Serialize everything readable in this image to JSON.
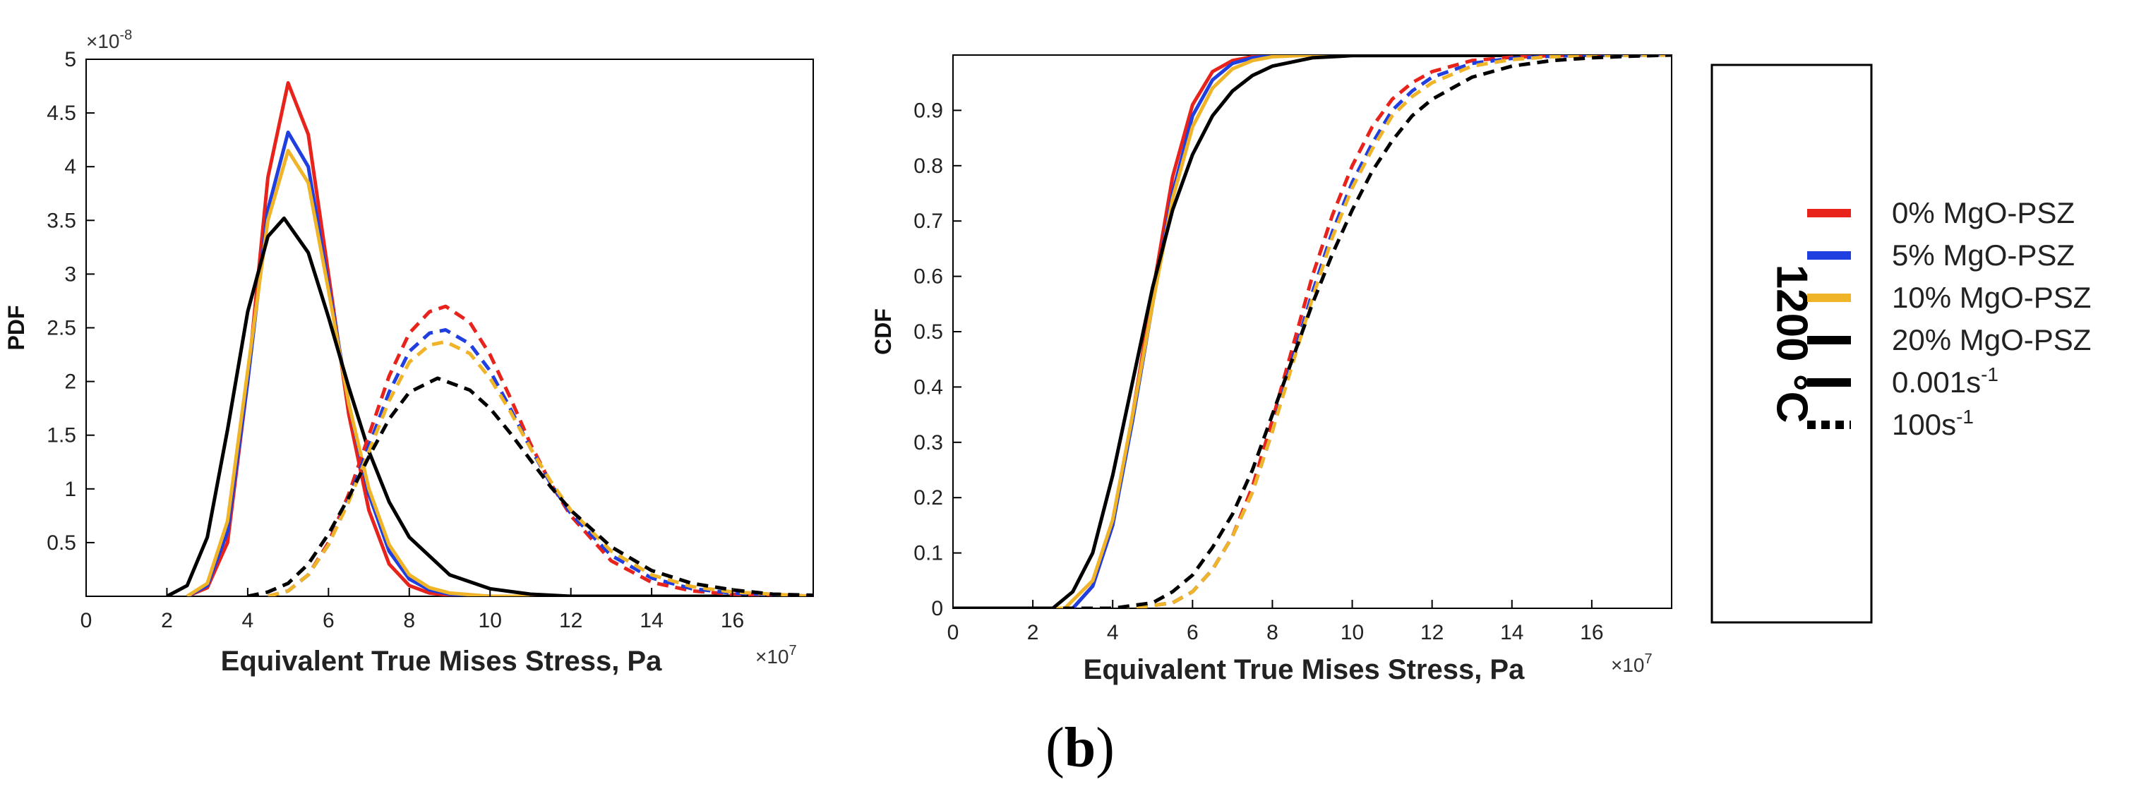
{
  "caption": {
    "open": "(",
    "letter": "b",
    "close": ")"
  },
  "legend": {
    "temperature": "1200 °C",
    "materials": [
      {
        "label": "0% MgO-PSZ",
        "color": "#e8231c"
      },
      {
        "label": "5% MgO-PSZ",
        "color": "#1f3fe0"
      },
      {
        "label": "10% MgO-PSZ",
        "color": "#f0b429"
      },
      {
        "label": "20% MgO-PSZ",
        "color": "#000000"
      }
    ],
    "rates": [
      {
        "base": "0.001s",
        "sup": "-1",
        "style": "solid"
      },
      {
        "base": "100s",
        "sup": "-1",
        "style": "dashed"
      }
    ]
  },
  "chart_data": [
    {
      "type": "line",
      "ylabel": "PDF",
      "xlabel": "Equivalent True Mises Stress, Pa",
      "x_multiplier": "×10",
      "x_multiplier_exp": "7",
      "y_multiplier": "×10",
      "y_multiplier_exp": "-8",
      "xlim": [
        0,
        18
      ],
      "ylim": [
        0,
        5
      ],
      "xticks": [
        0,
        2,
        4,
        6,
        8,
        10,
        12,
        14,
        16
      ],
      "yticks": [
        0.5,
        1,
        1.5,
        2,
        2.5,
        3,
        3.5,
        4,
        4.5,
        5
      ],
      "ytick_labels": [
        "0.5",
        "1",
        "1.5",
        "2",
        "2.5",
        "3",
        "3.5",
        "4",
        "4.5",
        "5"
      ],
      "series": [
        {
          "name": "0% MgO-PSZ, 0.001s-1",
          "rate": "0.001s-1",
          "color": "#e8231c",
          "dash": "solid",
          "x": [
            2.5,
            3.0,
            3.5,
            4.0,
            4.5,
            5.0,
            5.5,
            6.0,
            6.5,
            7.0,
            7.5,
            8.0,
            8.5,
            9.0,
            10.0,
            18.0
          ],
          "y": [
            0.0,
            0.08,
            0.5,
            2.0,
            3.9,
            4.78,
            4.3,
            3.0,
            1.7,
            0.8,
            0.3,
            0.1,
            0.03,
            0.01,
            0.0,
            0.0
          ]
        },
        {
          "name": "5% MgO-PSZ, 0.001s-1",
          "rate": "0.001s-1",
          "color": "#1f3fe0",
          "dash": "solid",
          "x": [
            2.5,
            3.0,
            3.5,
            4.0,
            4.5,
            5.0,
            5.5,
            6.0,
            6.5,
            7.0,
            7.5,
            8.0,
            8.5,
            9.0,
            10.0,
            18.0
          ],
          "y": [
            0.0,
            0.1,
            0.6,
            2.0,
            3.6,
            4.32,
            4.0,
            2.9,
            1.8,
            0.95,
            0.42,
            0.16,
            0.06,
            0.02,
            0.0,
            0.0
          ]
        },
        {
          "name": "10% MgO-PSZ, 0.001s-1",
          "rate": "0.001s-1",
          "color": "#f0b429",
          "dash": "solid",
          "x": [
            2.5,
            3.0,
            3.5,
            4.0,
            4.5,
            5.0,
            5.5,
            6.0,
            6.5,
            7.0,
            7.5,
            8.0,
            8.5,
            9.0,
            10.0,
            18.0
          ],
          "y": [
            0.0,
            0.12,
            0.7,
            2.1,
            3.5,
            4.15,
            3.85,
            2.85,
            1.8,
            1.0,
            0.48,
            0.2,
            0.08,
            0.03,
            0.0,
            0.0
          ]
        },
        {
          "name": "20% MgO-PSZ, 0.001s-1",
          "rate": "0.001s-1",
          "color": "#000000",
          "dash": "solid",
          "x": [
            2.0,
            2.5,
            3.0,
            3.5,
            4.0,
            4.5,
            4.9,
            5.5,
            6.0,
            6.5,
            7.0,
            7.5,
            8.0,
            9.0,
            10.0,
            11.0,
            12.0,
            18.0
          ],
          "y": [
            0.0,
            0.1,
            0.55,
            1.55,
            2.65,
            3.35,
            3.52,
            3.2,
            2.6,
            1.95,
            1.35,
            0.88,
            0.55,
            0.2,
            0.07,
            0.02,
            0.0,
            0.0
          ]
        },
        {
          "name": "0% MgO-PSZ, 100s-1",
          "rate": "100s-1",
          "color": "#e8231c",
          "dash": "dashed",
          "x": [
            4.5,
            5.0,
            5.5,
            6.0,
            6.5,
            7.0,
            7.5,
            8.0,
            8.5,
            8.9,
            9.5,
            10.0,
            10.5,
            11.0,
            11.5,
            12.0,
            13.0,
            14.0,
            15.0,
            16.0,
            18.0
          ],
          "y": [
            0.0,
            0.05,
            0.2,
            0.5,
            0.95,
            1.5,
            2.05,
            2.45,
            2.65,
            2.7,
            2.55,
            2.25,
            1.85,
            1.42,
            1.05,
            0.75,
            0.33,
            0.13,
            0.05,
            0.02,
            0.0
          ]
        },
        {
          "name": "5% MgO-PSZ, 100s-1",
          "rate": "100s-1",
          "color": "#1f3fe0",
          "dash": "dashed",
          "x": [
            4.5,
            5.0,
            5.5,
            6.0,
            6.5,
            7.0,
            7.5,
            8.0,
            8.5,
            8.9,
            9.5,
            10.0,
            10.5,
            11.0,
            11.5,
            12.0,
            13.0,
            14.0,
            15.0,
            16.0,
            18.0
          ],
          "y": [
            0.0,
            0.05,
            0.2,
            0.48,
            0.9,
            1.4,
            1.9,
            2.28,
            2.45,
            2.48,
            2.35,
            2.1,
            1.75,
            1.38,
            1.05,
            0.77,
            0.38,
            0.17,
            0.07,
            0.03,
            0.0
          ]
        },
        {
          "name": "10% MgO-PSZ, 100s-1",
          "rate": "100s-1",
          "color": "#f0b429",
          "dash": "dashed",
          "x": [
            4.5,
            5.0,
            5.5,
            6.0,
            6.5,
            7.0,
            7.5,
            8.0,
            8.5,
            8.9,
            9.5,
            10.0,
            10.5,
            11.0,
            11.5,
            12.0,
            13.0,
            14.0,
            15.0,
            16.0,
            18.0
          ],
          "y": [
            0.0,
            0.05,
            0.2,
            0.48,
            0.88,
            1.35,
            1.82,
            2.18,
            2.34,
            2.37,
            2.26,
            2.03,
            1.72,
            1.38,
            1.07,
            0.8,
            0.42,
            0.2,
            0.09,
            0.04,
            0.0
          ]
        },
        {
          "name": "20% MgO-PSZ, 100s-1",
          "rate": "100s-1",
          "color": "#000000",
          "dash": "dashed",
          "x": [
            4.0,
            4.5,
            5.0,
            5.5,
            6.0,
            6.5,
            7.0,
            7.5,
            8.0,
            8.7,
            9.5,
            10.0,
            10.5,
            11.0,
            11.5,
            12.0,
            13.0,
            14.0,
            15.0,
            16.0,
            17.0,
            18.0
          ],
          "y": [
            0.0,
            0.04,
            0.12,
            0.3,
            0.58,
            0.92,
            1.3,
            1.65,
            1.9,
            2.03,
            1.92,
            1.75,
            1.52,
            1.27,
            1.02,
            0.8,
            0.46,
            0.24,
            0.12,
            0.06,
            0.02,
            0.01
          ]
        }
      ]
    },
    {
      "type": "line",
      "ylabel": "CDF",
      "xlabel": "Equivalent True Mises Stress, Pa",
      "x_multiplier": "×10",
      "x_multiplier_exp": "7",
      "xlim": [
        0,
        18
      ],
      "ylim": [
        0,
        1
      ],
      "xticks": [
        0,
        2,
        4,
        6,
        8,
        10,
        12,
        14,
        16
      ],
      "yticks": [
        0,
        0.1,
        0.2,
        0.3,
        0.4,
        0.5,
        0.6,
        0.7,
        0.8,
        0.9
      ],
      "ytick_labels": [
        "0",
        "0.1",
        "0.2",
        "0.3",
        "0.4",
        "0.5",
        "0.6",
        "0.7",
        "0.8",
        "0.9"
      ],
      "series": [
        {
          "name": "0% MgO-PSZ, 0.001s-1",
          "rate": "0.001s-1",
          "color": "#e8231c",
          "dash": "solid",
          "x": [
            0,
            3.0,
            3.5,
            4.0,
            4.5,
            5.0,
            5.5,
            6.0,
            6.5,
            7.0,
            7.5,
            8.0,
            18.0
          ],
          "y": [
            0,
            0.0,
            0.04,
            0.15,
            0.35,
            0.57,
            0.78,
            0.91,
            0.97,
            0.99,
            0.997,
            1.0,
            1.0
          ]
        },
        {
          "name": "5% MgO-PSZ, 0.001s-1",
          "rate": "0.001s-1",
          "color": "#1f3fe0",
          "dash": "solid",
          "x": [
            0,
            3.0,
            3.5,
            4.0,
            4.5,
            5.0,
            5.5,
            6.0,
            6.5,
            7.0,
            7.5,
            8.0,
            9.0,
            18.0
          ],
          "y": [
            0,
            0.0,
            0.04,
            0.15,
            0.34,
            0.55,
            0.75,
            0.89,
            0.955,
            0.985,
            0.995,
            0.999,
            1.0,
            1.0
          ]
        },
        {
          "name": "10% MgO-PSZ, 0.001s-1",
          "rate": "0.001s-1",
          "color": "#f0b429",
          "dash": "solid",
          "x": [
            0,
            2.8,
            3.5,
            4.0,
            4.5,
            5.0,
            5.5,
            6.0,
            6.5,
            7.0,
            7.5,
            8.0,
            9.0,
            18.0
          ],
          "y": [
            0,
            0.0,
            0.05,
            0.16,
            0.35,
            0.55,
            0.74,
            0.87,
            0.94,
            0.975,
            0.99,
            0.997,
            1.0,
            1.0
          ]
        },
        {
          "name": "20% MgO-PSZ, 0.001s-1",
          "rate": "0.001s-1",
          "color": "#000000",
          "dash": "solid",
          "x": [
            0,
            2.5,
            3.0,
            3.5,
            4.0,
            4.5,
            5.0,
            5.5,
            6.0,
            6.5,
            7.0,
            7.5,
            8.0,
            9.0,
            10.0,
            18.0
          ],
          "y": [
            0,
            0.0,
            0.03,
            0.1,
            0.24,
            0.41,
            0.58,
            0.72,
            0.82,
            0.89,
            0.935,
            0.963,
            0.98,
            0.995,
            0.999,
            1.0
          ]
        },
        {
          "name": "0% MgO-PSZ, 100s-1",
          "rate": "100s-1",
          "color": "#e8231c",
          "dash": "dashed",
          "x": [
            0,
            4.5,
            5.5,
            6.0,
            6.5,
            7.0,
            7.5,
            8.0,
            8.5,
            9.0,
            9.5,
            10.0,
            10.5,
            11.0,
            11.5,
            12.0,
            13.0,
            14.0,
            15.0,
            16.0,
            18.0
          ],
          "y": [
            0,
            0.0,
            0.01,
            0.03,
            0.07,
            0.13,
            0.22,
            0.34,
            0.47,
            0.6,
            0.71,
            0.8,
            0.87,
            0.92,
            0.95,
            0.97,
            0.99,
            0.996,
            0.999,
            1.0,
            1.0
          ]
        },
        {
          "name": "5% MgO-PSZ, 100s-1",
          "rate": "100s-1",
          "color": "#1f3fe0",
          "dash": "dashed",
          "x": [
            0,
            4.5,
            5.5,
            6.0,
            6.5,
            7.0,
            7.5,
            8.0,
            8.5,
            9.0,
            9.5,
            10.0,
            10.5,
            11.0,
            11.5,
            12.0,
            13.0,
            14.0,
            15.0,
            16.0,
            18.0
          ],
          "y": [
            0,
            0.0,
            0.01,
            0.03,
            0.07,
            0.13,
            0.21,
            0.32,
            0.45,
            0.57,
            0.68,
            0.77,
            0.84,
            0.9,
            0.935,
            0.96,
            0.985,
            0.994,
            0.998,
            1.0,
            1.0
          ]
        },
        {
          "name": "10% MgO-PSZ, 100s-1",
          "rate": "100s-1",
          "color": "#f0b429",
          "dash": "dashed",
          "x": [
            0,
            4.5,
            5.5,
            6.0,
            6.5,
            7.0,
            7.5,
            8.0,
            8.5,
            9.0,
            9.5,
            10.0,
            10.5,
            11.0,
            11.5,
            12.0,
            13.0,
            14.0,
            15.0,
            16.0,
            18.0
          ],
          "y": [
            0,
            0.0,
            0.01,
            0.03,
            0.07,
            0.13,
            0.21,
            0.32,
            0.44,
            0.56,
            0.67,
            0.76,
            0.83,
            0.89,
            0.925,
            0.95,
            0.98,
            0.992,
            0.997,
            0.999,
            1.0
          ]
        },
        {
          "name": "20% MgO-PSZ, 100s-1",
          "rate": "100s-1",
          "color": "#000000",
          "dash": "dashed",
          "x": [
            0,
            4.0,
            5.0,
            5.5,
            6.0,
            6.5,
            7.0,
            7.5,
            8.0,
            8.5,
            9.0,
            9.5,
            10.0,
            10.5,
            11.0,
            11.5,
            12.0,
            13.0,
            14.0,
            15.0,
            16.0,
            17.0,
            18.0
          ],
          "y": [
            0,
            0.0,
            0.01,
            0.03,
            0.06,
            0.11,
            0.17,
            0.25,
            0.35,
            0.45,
            0.55,
            0.64,
            0.72,
            0.79,
            0.845,
            0.89,
            0.92,
            0.96,
            0.98,
            0.99,
            0.995,
            0.998,
            1.0
          ]
        }
      ]
    }
  ]
}
